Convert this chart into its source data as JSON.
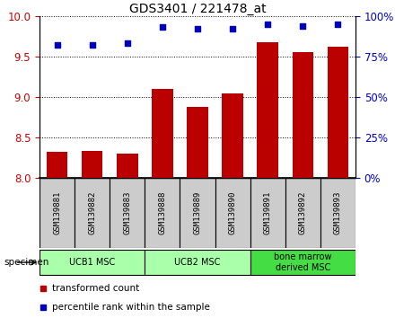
{
  "title": "GDS3401 / 221478_at",
  "samples": [
    "GSM139881",
    "GSM139882",
    "GSM139883",
    "GSM139888",
    "GSM139889",
    "GSM139890",
    "GSM139891",
    "GSM139892",
    "GSM139893"
  ],
  "transformed_counts": [
    8.32,
    8.33,
    8.3,
    9.1,
    8.88,
    9.04,
    9.68,
    9.55,
    9.62
  ],
  "percentile_ranks": [
    82,
    82,
    83,
    93,
    92,
    92,
    95,
    94,
    95
  ],
  "ylim_left": [
    8.0,
    10.0
  ],
  "ylim_right": [
    0,
    100
  ],
  "yticks_left": [
    8.0,
    8.5,
    9.0,
    9.5,
    10.0
  ],
  "yticks_right": [
    0,
    25,
    50,
    75,
    100
  ],
  "bar_color": "#bb0000",
  "scatter_color": "#0000bb",
  "groups": [
    {
      "label": "UCB1 MSC",
      "indices": [
        0,
        1,
        2
      ],
      "color": "#aaffaa"
    },
    {
      "label": "UCB2 MSC",
      "indices": [
        3,
        4,
        5
      ],
      "color": "#aaffaa"
    },
    {
      "label": "bone marrow\nderived MSC",
      "indices": [
        6,
        7,
        8
      ],
      "color": "#44dd44"
    }
  ],
  "legend_bar_label": "transformed count",
  "legend_scatter_label": "percentile rank within the sample",
  "specimen_label": "specimen",
  "tick_label_color_left": "#cc0000",
  "tick_label_color_right": "#0000cc",
  "sample_box_color": "#cccccc",
  "bar_width": 0.6
}
